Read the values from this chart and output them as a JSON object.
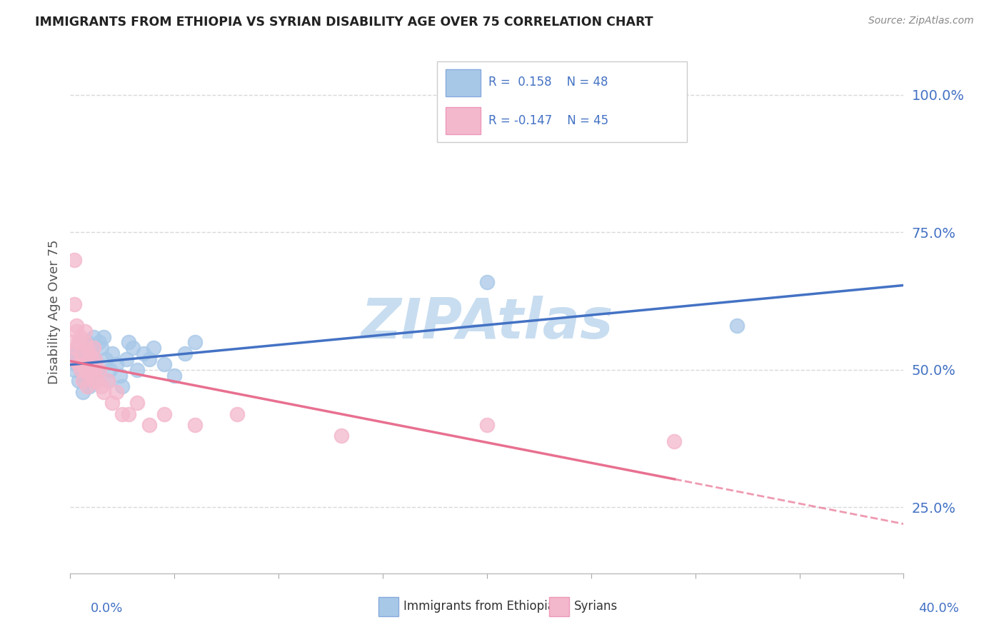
{
  "title": "IMMIGRANTS FROM ETHIOPIA VS SYRIAN DISABILITY AGE OVER 75 CORRELATION CHART",
  "source": "Source: ZipAtlas.com",
  "ylabel": "Disability Age Over 75",
  "ylabel_ticks": [
    "25.0%",
    "50.0%",
    "75.0%",
    "100.0%"
  ],
  "ylabel_values": [
    0.25,
    0.5,
    0.75,
    1.0
  ],
  "xlim": [
    0.0,
    0.4
  ],
  "ylim": [
    0.13,
    1.08
  ],
  "legend_label1": "Immigrants from Ethiopia",
  "legend_label2": "Syrians",
  "color_blue": "#a8c8e8",
  "color_pink": "#f4b8cc",
  "color_blue_line": "#4472c4",
  "color_pink_line": "#e87090",
  "watermark": "ZIPAtlas",
  "watermark_color": "#c8ddf0",
  "ethiopia_x": [
    0.001,
    0.002,
    0.003,
    0.003,
    0.004,
    0.004,
    0.005,
    0.005,
    0.005,
    0.006,
    0.006,
    0.006,
    0.007,
    0.007,
    0.008,
    0.008,
    0.009,
    0.009,
    0.01,
    0.01,
    0.011,
    0.011,
    0.012,
    0.012,
    0.013,
    0.014,
    0.015,
    0.016,
    0.017,
    0.018,
    0.019,
    0.02,
    0.022,
    0.024,
    0.025,
    0.027,
    0.028,
    0.03,
    0.032,
    0.035,
    0.038,
    0.04,
    0.045,
    0.05,
    0.055,
    0.06,
    0.2,
    0.32
  ],
  "ethiopia_y": [
    0.52,
    0.5,
    0.51,
    0.53,
    0.48,
    0.54,
    0.5,
    0.52,
    0.55,
    0.46,
    0.49,
    0.51,
    0.48,
    0.53,
    0.5,
    0.55,
    0.47,
    0.52,
    0.49,
    0.54,
    0.51,
    0.56,
    0.48,
    0.52,
    0.5,
    0.55,
    0.54,
    0.56,
    0.52,
    0.48,
    0.5,
    0.53,
    0.51,
    0.49,
    0.47,
    0.52,
    0.55,
    0.54,
    0.5,
    0.53,
    0.52,
    0.54,
    0.51,
    0.49,
    0.53,
    0.55,
    0.66,
    0.58
  ],
  "syrian_x": [
    0.001,
    0.001,
    0.002,
    0.002,
    0.003,
    0.003,
    0.003,
    0.004,
    0.004,
    0.005,
    0.005,
    0.005,
    0.006,
    0.006,
    0.007,
    0.007,
    0.007,
    0.008,
    0.008,
    0.008,
    0.009,
    0.009,
    0.01,
    0.01,
    0.011,
    0.011,
    0.012,
    0.012,
    0.013,
    0.014,
    0.015,
    0.016,
    0.018,
    0.02,
    0.022,
    0.025,
    0.028,
    0.032,
    0.038,
    0.045,
    0.06,
    0.08,
    0.13,
    0.2,
    0.29
  ],
  "syrian_y": [
    0.52,
    0.55,
    0.62,
    0.7,
    0.58,
    0.54,
    0.57,
    0.51,
    0.55,
    0.5,
    0.53,
    0.56,
    0.48,
    0.51,
    0.5,
    0.55,
    0.57,
    0.47,
    0.52,
    0.54,
    0.49,
    0.53,
    0.5,
    0.52,
    0.48,
    0.54,
    0.5,
    0.52,
    0.48,
    0.5,
    0.47,
    0.46,
    0.48,
    0.44,
    0.46,
    0.42,
    0.42,
    0.44,
    0.4,
    0.42,
    0.4,
    0.42,
    0.38,
    0.4,
    0.37
  ],
  "background_color": "#ffffff",
  "grid_color": "#d0d0d0",
  "eth_r": 0.158,
  "eth_n": 48,
  "syr_r": -0.147,
  "syr_n": 45
}
